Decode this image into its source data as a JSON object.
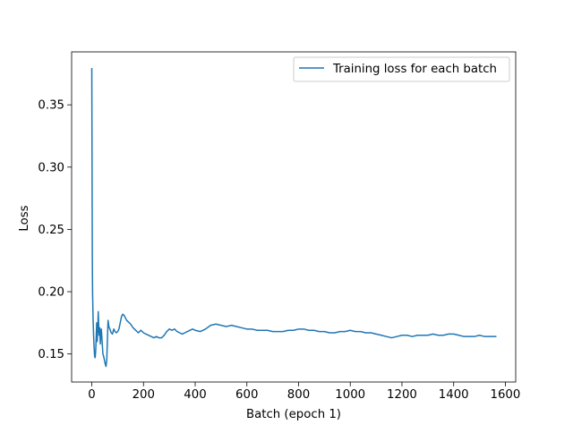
{
  "chart_data": {
    "type": "line",
    "title": "",
    "xlabel": "Batch (epoch 1)",
    "ylabel": "Loss",
    "xlim": [
      -78,
      1640
    ],
    "ylim": [
      0.1275,
      0.3925
    ],
    "xticks": [
      0,
      200,
      400,
      600,
      800,
      1000,
      1200,
      1400,
      1600
    ],
    "yticks": [
      0.15,
      0.2,
      0.25,
      0.3,
      0.35
    ],
    "xtick_labels": [
      "0",
      "200",
      "400",
      "600",
      "800",
      "1000",
      "1200",
      "1400",
      "1600"
    ],
    "ytick_labels": [
      "0.15",
      "0.20",
      "0.25",
      "0.30",
      "0.35"
    ],
    "grid": false,
    "legend_position": "upper right",
    "series": [
      {
        "name": "Training loss for each batch",
        "color": "#1f77b4",
        "points": [
          [
            0,
            0.379
          ],
          [
            1,
            0.31
          ],
          [
            2,
            0.23
          ],
          [
            3,
            0.2
          ],
          [
            5,
            0.178
          ],
          [
            7,
            0.165
          ],
          [
            9,
            0.155
          ],
          [
            11,
            0.148
          ],
          [
            13,
            0.147
          ],
          [
            15,
            0.152
          ],
          [
            17,
            0.163
          ],
          [
            19,
            0.175
          ],
          [
            21,
            0.16
          ],
          [
            23,
            0.168
          ],
          [
            25,
            0.184
          ],
          [
            27,
            0.172
          ],
          [
            29,
            0.165
          ],
          [
            31,
            0.171
          ],
          [
            33,
            0.158
          ],
          [
            35,
            0.165
          ],
          [
            37,
            0.17
          ],
          [
            40,
            0.16
          ],
          [
            43,
            0.15
          ],
          [
            46,
            0.148
          ],
          [
            49,
            0.145
          ],
          [
            52,
            0.142
          ],
          [
            55,
            0.14
          ],
          [
            58,
            0.145
          ],
          [
            61,
            0.165
          ],
          [
            63,
            0.177
          ],
          [
            66,
            0.172
          ],
          [
            70,
            0.17
          ],
          [
            75,
            0.167
          ],
          [
            80,
            0.166
          ],
          [
            85,
            0.17
          ],
          [
            90,
            0.168
          ],
          [
            95,
            0.167
          ],
          [
            100,
            0.168
          ],
          [
            105,
            0.17
          ],
          [
            110,
            0.175
          ],
          [
            115,
            0.18
          ],
          [
            120,
            0.182
          ],
          [
            125,
            0.181
          ],
          [
            130,
            0.179
          ],
          [
            135,
            0.177
          ],
          [
            140,
            0.176
          ],
          [
            150,
            0.174
          ],
          [
            160,
            0.171
          ],
          [
            170,
            0.169
          ],
          [
            180,
            0.167
          ],
          [
            190,
            0.169
          ],
          [
            200,
            0.167
          ],
          [
            210,
            0.166
          ],
          [
            220,
            0.165
          ],
          [
            230,
            0.164
          ],
          [
            240,
            0.163
          ],
          [
            250,
            0.164
          ],
          [
            260,
            0.163
          ],
          [
            270,
            0.163
          ],
          [
            280,
            0.165
          ],
          [
            290,
            0.168
          ],
          [
            300,
            0.17
          ],
          [
            310,
            0.169
          ],
          [
            320,
            0.17
          ],
          [
            330,
            0.168
          ],
          [
            340,
            0.167
          ],
          [
            350,
            0.166
          ],
          [
            360,
            0.167
          ],
          [
            370,
            0.168
          ],
          [
            380,
            0.169
          ],
          [
            390,
            0.17
          ],
          [
            400,
            0.169
          ],
          [
            420,
            0.168
          ],
          [
            440,
            0.17
          ],
          [
            460,
            0.173
          ],
          [
            480,
            0.174
          ],
          [
            500,
            0.173
          ],
          [
            520,
            0.172
          ],
          [
            540,
            0.173
          ],
          [
            560,
            0.172
          ],
          [
            580,
            0.171
          ],
          [
            600,
            0.17
          ],
          [
            620,
            0.17
          ],
          [
            640,
            0.169
          ],
          [
            660,
            0.169
          ],
          [
            680,
            0.169
          ],
          [
            700,
            0.168
          ],
          [
            720,
            0.168
          ],
          [
            740,
            0.168
          ],
          [
            760,
            0.169
          ],
          [
            780,
            0.169
          ],
          [
            800,
            0.17
          ],
          [
            820,
            0.17
          ],
          [
            840,
            0.169
          ],
          [
            860,
            0.169
          ],
          [
            880,
            0.168
          ],
          [
            900,
            0.168
          ],
          [
            920,
            0.167
          ],
          [
            940,
            0.167
          ],
          [
            960,
            0.168
          ],
          [
            980,
            0.168
          ],
          [
            1000,
            0.169
          ],
          [
            1020,
            0.168
          ],
          [
            1040,
            0.168
          ],
          [
            1060,
            0.167
          ],
          [
            1080,
            0.167
          ],
          [
            1100,
            0.166
          ],
          [
            1120,
            0.165
          ],
          [
            1140,
            0.164
          ],
          [
            1160,
            0.163
          ],
          [
            1180,
            0.164
          ],
          [
            1200,
            0.165
          ],
          [
            1220,
            0.165
          ],
          [
            1240,
            0.164
          ],
          [
            1260,
            0.165
          ],
          [
            1280,
            0.165
          ],
          [
            1300,
            0.165
          ],
          [
            1320,
            0.166
          ],
          [
            1340,
            0.165
          ],
          [
            1360,
            0.165
          ],
          [
            1380,
            0.166
          ],
          [
            1400,
            0.166
          ],
          [
            1420,
            0.165
          ],
          [
            1440,
            0.164
          ],
          [
            1460,
            0.164
          ],
          [
            1480,
            0.164
          ],
          [
            1500,
            0.165
          ],
          [
            1520,
            0.164
          ],
          [
            1540,
            0.164
          ],
          [
            1563,
            0.164
          ]
        ]
      }
    ]
  }
}
